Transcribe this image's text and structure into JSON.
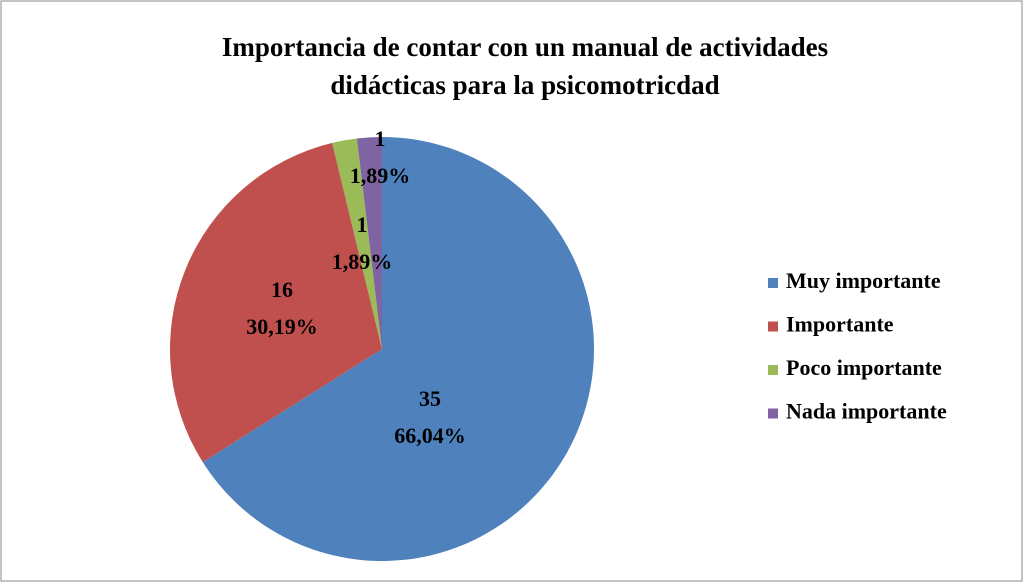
{
  "chart_data": {
    "type": "pie",
    "title": "Importancia de contar con un manual de actividades didácticas para la psicomotricdad",
    "categories": [
      "Muy importante",
      "Importante",
      "Poco importante",
      "Nada importante"
    ],
    "values": [
      35,
      16,
      1,
      1
    ],
    "percents": [
      66.04,
      30.19,
      1.89,
      1.89
    ],
    "percent_labels": [
      "66,04%",
      "30,19%",
      "1,89%",
      "1,89%"
    ],
    "colors": [
      "#4f81bd",
      "#c0504d",
      "#9bbb59",
      "#8064a2"
    ],
    "legend": "right"
  }
}
